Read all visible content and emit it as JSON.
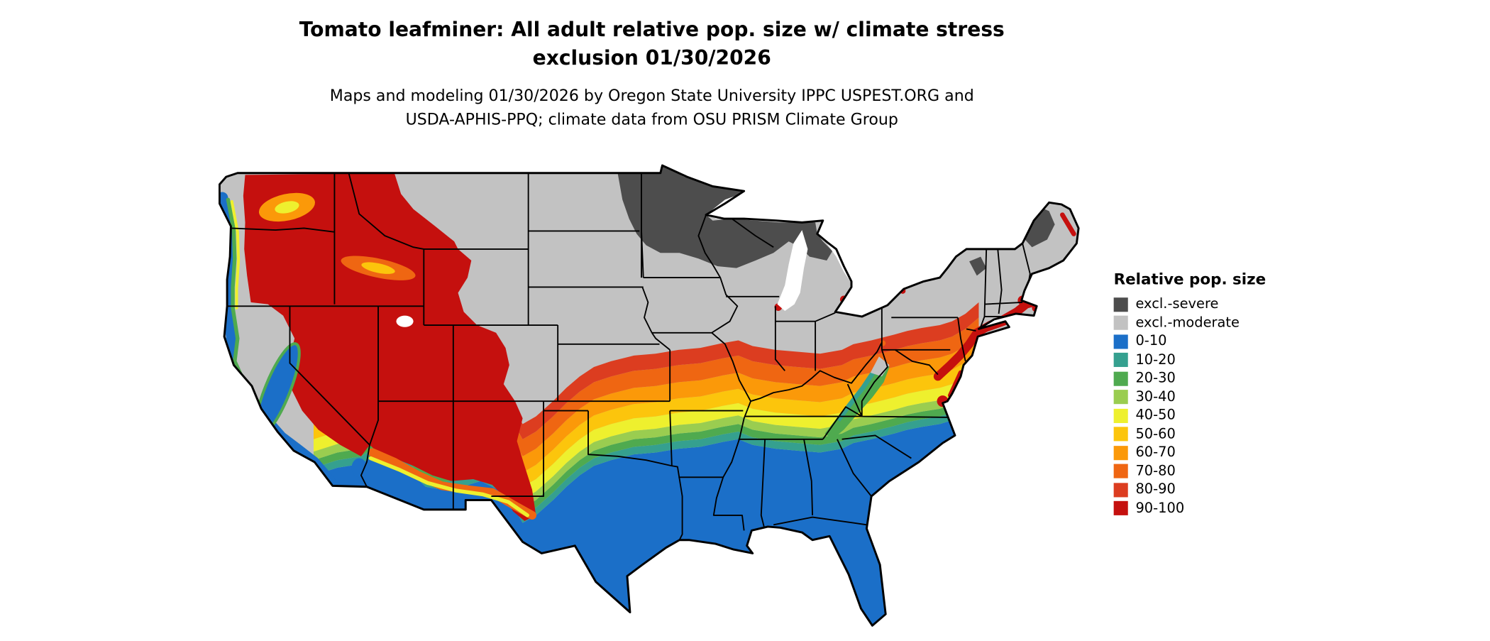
{
  "header": {
    "title_line1": "Tomato leafminer: All adult relative pop. size w/ climate stress",
    "title_line2": "exclusion 01/30/2026",
    "subtitle_line1": "Maps and modeling 01/30/2026 by Oregon State University IPPC USPEST.ORG and",
    "subtitle_line2": "USDA-APHIS-PPQ; climate data from OSU PRISM Climate Group"
  },
  "map": {
    "region": "Continental United States",
    "kind": "raster choropleth of relative population size with state borders"
  },
  "legend": {
    "title": "Relative pop. size",
    "items": [
      {
        "label": "excl.-severe",
        "color": "#4d4d4d"
      },
      {
        "label": "excl.-moderate",
        "color": "#c2c2c2"
      },
      {
        "label": "0-10",
        "color": "#1b6fc8"
      },
      {
        "label": "10-20",
        "color": "#35a08f"
      },
      {
        "label": "20-30",
        "color": "#4faa4f"
      },
      {
        "label": "30-40",
        "color": "#9acd50"
      },
      {
        "label": "40-50",
        "color": "#eef02e"
      },
      {
        "label": "50-60",
        "color": "#fcc50c"
      },
      {
        "label": "60-70",
        "color": "#fb9909"
      },
      {
        "label": "70-80",
        "color": "#ef6612"
      },
      {
        "label": "80-90",
        "color": "#dc3d20"
      },
      {
        "label": "90-100",
        "color": "#c5100e"
      }
    ]
  }
}
